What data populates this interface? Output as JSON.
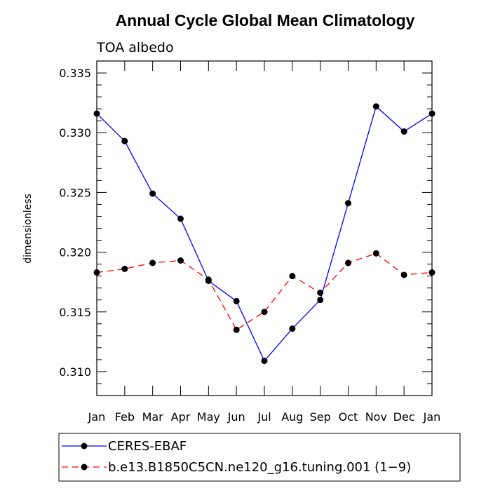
{
  "chart_data": {
    "type": "line",
    "title": "Annual Cycle Global Mean Climatology",
    "subtitle": "TOA albedo",
    "xlabel": "",
    "ylabel": "dimensionless",
    "categories": [
      "Jan",
      "Feb",
      "Mar",
      "Apr",
      "May",
      "Jun",
      "Jul",
      "Aug",
      "Sep",
      "Oct",
      "Nov",
      "Dec",
      "Jan"
    ],
    "ylim": [
      0.308,
      0.336
    ],
    "yticks": [
      0.31,
      0.315,
      0.32,
      0.325,
      0.33,
      0.335
    ],
    "ytick_labels": [
      "0.310",
      "0.315",
      "0.320",
      "0.325",
      "0.330",
      "0.335"
    ],
    "grid": false,
    "legend_position": "bottom-left",
    "series": [
      {
        "name": "CERES-EBAF",
        "color": "#0000ff",
        "line_style": "solid",
        "marker": "circle",
        "values": [
          0.3316,
          0.3293,
          0.3249,
          0.3228,
          0.3176,
          0.3159,
          0.3109,
          0.3136,
          0.316,
          0.3241,
          0.3322,
          0.3301,
          0.3316
        ]
      },
      {
        "name": "b.e13.B1850C5CN.ne120_g16.tuning.001 (1−9)",
        "color": "#ff0000",
        "line_style": "dashed",
        "marker": "circle",
        "values": [
          0.3183,
          0.3186,
          0.3191,
          0.3193,
          0.3177,
          0.3135,
          0.315,
          0.318,
          0.3166,
          0.3191,
          0.3199,
          0.3181,
          0.3183
        ]
      }
    ]
  }
}
